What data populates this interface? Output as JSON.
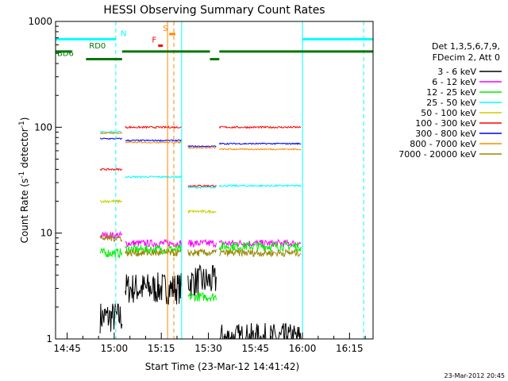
{
  "chart_data": {
    "type": "line",
    "title": "HESSI Observing Summary Count Rates",
    "xlabel": "Start Time (23-Mar-12 14:41:42)",
    "ylabel": "Count Rate (s",
    "ylabel_sup1": "-1",
    "ylabel_mid": " detector",
    "ylabel_sup2": "-1",
    "ylabel_end": ")",
    "y_scale": "log",
    "ylim": [
      1,
      1000
    ],
    "xlim_minutes": [
      -3.7,
      97.5
    ],
    "x_ticks": [
      {
        "m": 0,
        "label": "14:45"
      },
      {
        "m": 15,
        "label": "15:00"
      },
      {
        "m": 30,
        "label": "15:15"
      },
      {
        "m": 45,
        "label": "15:30"
      },
      {
        "m": 60,
        "label": "15:45"
      },
      {
        "m": 75,
        "label": "16:00"
      },
      {
        "m": 90,
        "label": "16:15"
      }
    ],
    "y_ticks": [
      {
        "v": 1,
        "label": "1"
      },
      {
        "v": 10,
        "label": "10"
      },
      {
        "v": 100,
        "label": "100"
      },
      {
        "v": 1000,
        "label": "1000"
      }
    ],
    "legend_header": [
      "Det 1,3,5,6,7,9,",
      "FDecim 2, Att 0"
    ],
    "legend_placement": "right",
    "timestamp": "23-Mar-2012 20:45",
    "segments": [
      [
        10.5,
        17.5
      ],
      [
        18.5,
        36.5
      ],
      [
        38.5,
        47.5
      ],
      [
        48.5,
        74.5
      ]
    ],
    "series": [
      {
        "name": "3 - 6 keV",
        "color": "#000000",
        "values": [
          1.6,
          3.0,
          3.5,
          1.0
        ],
        "noise": 0.35
      },
      {
        "name": "6 - 12 keV",
        "color": "#ff00ff",
        "values": [
          9.5,
          8.0,
          8.0,
          8.0
        ],
        "noise": 0.08
      },
      {
        "name": "12 - 25 keV",
        "color": "#00ee00",
        "values": [
          6.5,
          7.0,
          2.5,
          7.5
        ],
        "noise": 0.1
      },
      {
        "name": "25 - 50 keV",
        "color": "#00ffff",
        "values": [
          90,
          34,
          27,
          28
        ],
        "noise": 0.02
      },
      {
        "name": "50 - 100 keV",
        "color": "#cccc00",
        "values": [
          20,
          0,
          16,
          0
        ],
        "noise": 0.03
      },
      {
        "name": "100 - 300 keV",
        "color": "#ff0000",
        "values": [
          40,
          100,
          28,
          100
        ],
        "noise": 0.02
      },
      {
        "name": "300 - 800 keV",
        "color": "#0000ff",
        "values": [
          78,
          75,
          66,
          70
        ],
        "noise": 0.015
      },
      {
        "name": "800 - 7000 keV",
        "color": "#ff8800",
        "values": [
          88,
          72,
          64,
          62
        ],
        "noise": 0.015
      },
      {
        "name": "7000 - 20000 keV",
        "color": "#998800",
        "values": [
          9.0,
          6.5,
          6.5,
          6.5
        ],
        "noise": 0.08
      }
    ],
    "flags": [
      {
        "name": "N",
        "color": "#00ffff",
        "value": 680,
        "ranges": [
          [
            -3.7,
            15.5
          ],
          [
            75,
            97.5
          ]
        ],
        "label_at": 17
      },
      {
        "name": "RD0",
        "color": "#007700",
        "value": 520,
        "ranges": [
          [
            -3.7,
            1.5
          ],
          [
            17.5,
            45.5
          ],
          [
            48.5,
            97.5
          ]
        ],
        "label_at": 7
      },
      {
        "name": "BD6",
        "color": "#007700",
        "value": 440,
        "ranges": [
          [
            6,
            17.5
          ],
          [
            45.5,
            48.5
          ]
        ],
        "label_at": -3.2
      },
      {
        "name": "S",
        "color": "#ff8800",
        "value": 760,
        "ranges": [
          [
            32.5,
            34.5
          ]
        ],
        "label_at": 30.5
      },
      {
        "name": "F",
        "color": "#ff0000",
        "value": 590,
        "ranges": [
          [
            29,
            30.5
          ]
        ],
        "label_at": 27
      }
    ],
    "vlines": [
      {
        "m": 15.5,
        "color": "#00ffff",
        "style": "dash"
      },
      {
        "m": 75,
        "color": "#00ffff",
        "style": "solid"
      },
      {
        "m": 94.5,
        "color": "#00ffff",
        "style": "dash"
      },
      {
        "m": 32,
        "color": "#ff8800",
        "style": "solid"
      },
      {
        "m": 34,
        "color": "#ff8800",
        "style": "dash"
      },
      {
        "m": 36.5,
        "color": "#00ffff",
        "style": "solid"
      }
    ]
  }
}
